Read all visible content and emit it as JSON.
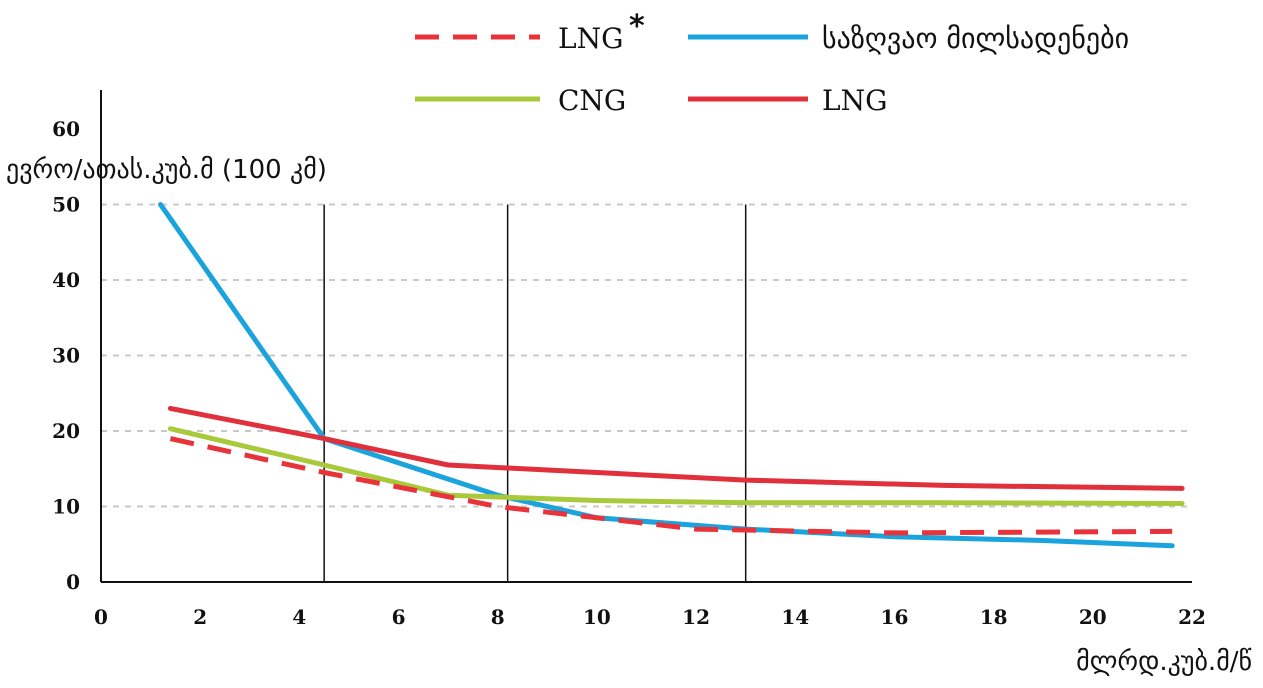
{
  "chart_data": {
    "type": "line",
    "ylabel": "ევრო/ათას.კუბ.მ (100 კმ)",
    "xlabel": "მლრდ.კუბ.მ/წ",
    "xlim": [
      0,
      22
    ],
    "ylim": [
      0,
      60
    ],
    "x_ticks": [
      "0",
      "2",
      "4",
      "6",
      "8",
      "10",
      "12",
      "14",
      "16",
      "18",
      "20",
      "22"
    ],
    "y_ticks": [
      "0",
      "10",
      "20",
      "30",
      "40",
      "50",
      "60"
    ],
    "grid": "horizontal dashed",
    "vertical_markers": [
      4.5,
      8.2,
      13.0
    ],
    "legend_position": "top-right",
    "series": [
      {
        "name": "LNG",
        "legend_mark": "*",
        "color": "#e8333b",
        "style": "dashed",
        "x": [
          1.4,
          4.5,
          8,
          12,
          16,
          21.6
        ],
        "y": [
          19,
          14.5,
          10,
          7,
          6.5,
          6.7
        ]
      },
      {
        "name": "საზღვაო მილსადენები",
        "color": "#1aa3dd",
        "style": "solid",
        "x": [
          1.2,
          4.5,
          8,
          10,
          13,
          16,
          19,
          21.6
        ],
        "y": [
          50,
          19,
          11.5,
          8.5,
          7,
          6,
          5.5,
          4.8
        ]
      },
      {
        "name": "CNG",
        "color": "#a8c93a",
        "style": "solid",
        "x": [
          1.4,
          4.5,
          7,
          10,
          13,
          17,
          21.8
        ],
        "y": [
          20.3,
          15.5,
          11.5,
          10.8,
          10.5,
          10.5,
          10.4
        ]
      },
      {
        "name": "LNG",
        "color": "#e0303b",
        "style": "solid",
        "x": [
          1.4,
          4.5,
          7,
          10,
          13,
          17,
          21.8
        ],
        "y": [
          23,
          19,
          15.5,
          14.5,
          13.5,
          12.8,
          12.4
        ]
      }
    ]
  }
}
